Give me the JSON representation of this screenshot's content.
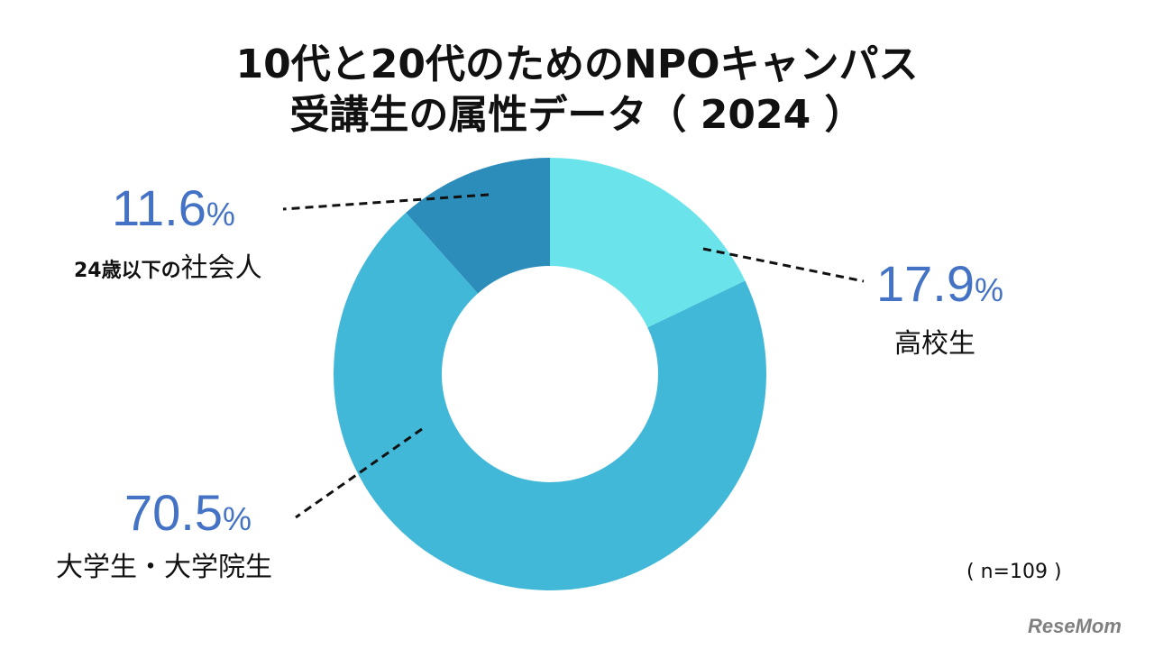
{
  "chart_data": {
    "type": "pie",
    "variant": "donut",
    "title_line1": "10代と20代のためのNPOキャンパス",
    "title_line2": "受講生の属性データ（ 2024 ）",
    "start_angle_deg": 0,
    "direction": "clockwise",
    "slices": [
      {
        "label": "高校生",
        "value": 17.9,
        "value_text": "17.9",
        "color": "#6ae4ea"
      },
      {
        "label": "大学生・大学院生",
        "value": 70.5,
        "value_text": "70.5",
        "color": "#42b8d8"
      },
      {
        "label_prefix": "24歳以下の",
        "label": "社会人",
        "value": 11.6,
        "value_text": "11.6",
        "color": "#2c8cba"
      }
    ],
    "unit": "%",
    "sample_size": "( n=109 )"
  },
  "watermark": "ReseMom",
  "colors": {
    "percent_text": "#4472c4",
    "leader_line": "#111111"
  }
}
